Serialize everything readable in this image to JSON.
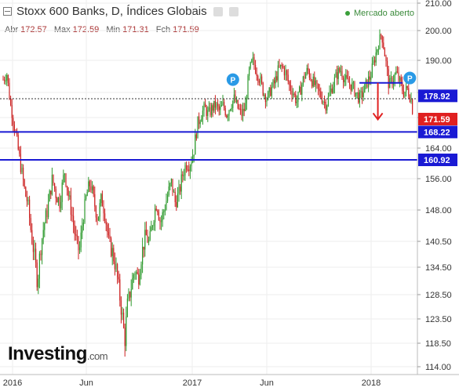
{
  "header": {
    "title": "Stoxx 600 Banks, D, Índices Globais",
    "status": "Mercado aberto"
  },
  "ohlc": {
    "open_label": "Abr",
    "open": "172.57",
    "high_label": "Max",
    "high": "172.59",
    "low_label": "Min",
    "low": "171.31",
    "close_label": "Fch",
    "close": "171.59"
  },
  "brand": {
    "name": "Investing",
    "suffix": ".com"
  },
  "colors": {
    "up": "#2e9a2e",
    "down": "#cc2222",
    "hline": "#1a1ad4",
    "price": "#e02020",
    "grid": "#eeeeee"
  },
  "chart_data": {
    "type": "candlestick",
    "y_ticks": [
      114.0,
      118.5,
      123.5,
      128.5,
      134.5,
      140.5,
      148.0,
      156.0,
      164.0,
      172.0,
      180.0,
      190.0,
      200.0,
      210.0
    ],
    "x_ticks": [
      "2016",
      "Jun",
      "2017",
      "Jun",
      "2018"
    ],
    "price_labels": [
      {
        "value": 178.92,
        "color": "blue"
      },
      {
        "value": 171.59,
        "color": "red"
      },
      {
        "value": 168.22,
        "color": "blue"
      },
      {
        "value": 160.92,
        "color": "blue"
      }
    ],
    "horizontal_lines": [
      168.22,
      160.92
    ],
    "dotted_line": 178.0,
    "markers": [
      "P",
      "P"
    ],
    "path": [
      [
        0,
        184
      ],
      [
        3,
        186
      ],
      [
        6,
        176
      ],
      [
        10,
        168
      ],
      [
        14,
        160
      ],
      [
        18,
        152
      ],
      [
        20,
        150
      ],
      [
        23,
        142
      ],
      [
        26,
        136
      ],
      [
        28,
        131
      ],
      [
        30,
        138
      ],
      [
        33,
        144
      ],
      [
        36,
        148
      ],
      [
        40,
        156
      ],
      [
        43,
        152
      ],
      [
        46,
        150
      ],
      [
        50,
        158
      ],
      [
        53,
        152
      ],
      [
        56,
        147
      ],
      [
        59,
        141
      ],
      [
        62,
        138
      ],
      [
        65,
        146
      ],
      [
        68,
        152
      ],
      [
        71,
        155
      ],
      [
        74,
        150
      ],
      [
        77,
        146
      ],
      [
        80,
        151
      ],
      [
        83,
        147
      ],
      [
        86,
        140
      ],
      [
        89,
        138
      ],
      [
        92,
        134
      ],
      [
        95,
        128
      ],
      [
        97,
        124
      ],
      [
        99,
        119
      ],
      [
        101,
        126
      ],
      [
        104,
        130
      ],
      [
        107,
        134
      ],
      [
        110,
        132
      ],
      [
        113,
        138
      ],
      [
        116,
        142
      ],
      [
        119,
        140
      ],
      [
        122,
        146
      ],
      [
        125,
        150
      ],
      [
        128,
        145
      ],
      [
        131,
        148
      ],
      [
        134,
        152
      ],
      [
        137,
        155
      ],
      [
        140,
        150
      ],
      [
        143,
        152
      ],
      [
        146,
        157
      ],
      [
        149,
        160
      ],
      [
        152,
        160
      ],
      [
        155,
        163
      ],
      [
        158,
        170
      ],
      [
        161,
        173
      ],
      [
        164,
        175
      ],
      [
        167,
        173
      ],
      [
        170,
        175
      ],
      [
        173,
        176
      ],
      [
        176,
        174
      ],
      [
        179,
        176
      ],
      [
        182,
        173
      ],
      [
        185,
        176
      ],
      [
        188,
        178
      ],
      [
        191,
        175
      ],
      [
        194,
        173
      ],
      [
        197,
        175
      ],
      [
        200,
        186
      ],
      [
        203,
        190
      ],
      [
        206,
        187
      ],
      [
        209,
        184
      ],
      [
        212,
        180
      ],
      [
        215,
        178
      ],
      [
        218,
        181
      ],
      [
        221,
        183
      ],
      [
        224,
        187
      ],
      [
        227,
        188
      ],
      [
        230,
        186
      ],
      [
        233,
        182
      ],
      [
        236,
        180
      ],
      [
        239,
        177
      ],
      [
        242,
        181
      ],
      [
        245,
        185
      ],
      [
        248,
        187
      ],
      [
        251,
        184
      ],
      [
        254,
        182
      ],
      [
        257,
        180
      ],
      [
        260,
        178
      ],
      [
        263,
        176
      ],
      [
        266,
        180
      ],
      [
        269,
        183
      ],
      [
        272,
        186
      ],
      [
        275,
        187
      ],
      [
        278,
        184
      ],
      [
        281,
        183
      ],
      [
        284,
        182
      ],
      [
        287,
        180
      ],
      [
        290,
        178
      ],
      [
        293,
        180
      ],
      [
        296,
        183
      ],
      [
        299,
        185
      ],
      [
        302,
        190
      ],
      [
        305,
        195
      ],
      [
        308,
        199
      ],
      [
        310,
        194
      ],
      [
        312,
        188
      ],
      [
        314,
        182
      ],
      [
        317,
        184
      ],
      [
        320,
        186
      ],
      [
        323,
        183
      ],
      [
        326,
        180
      ],
      [
        329,
        181
      ],
      [
        332,
        178
      ],
      [
        334,
        172
      ]
    ]
  }
}
